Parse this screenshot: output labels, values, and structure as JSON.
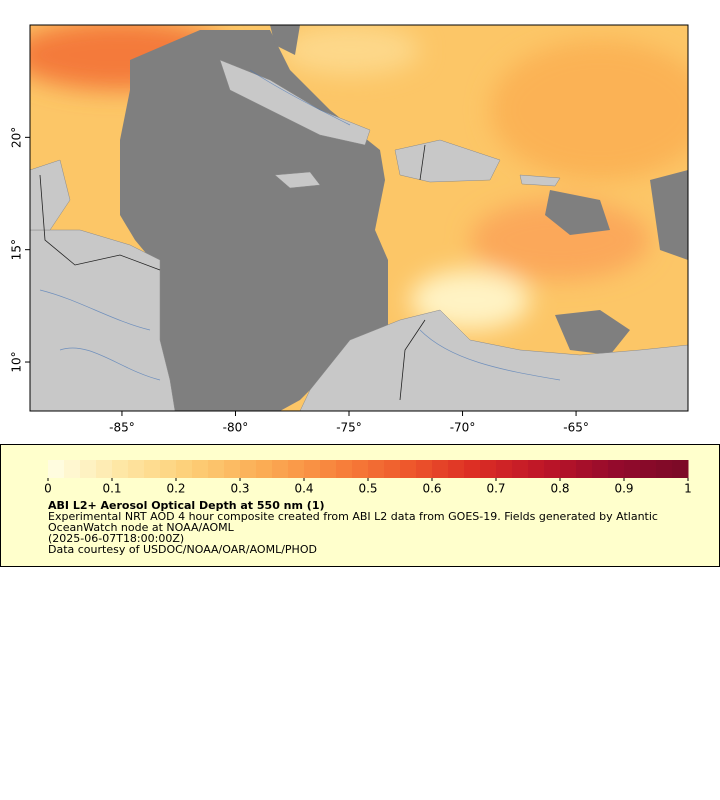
{
  "map": {
    "type": "map",
    "xlim": [
      -89.05,
      -60.07
    ],
    "ylim": [
      7.82,
      25
    ],
    "xticks": [
      {
        "value": -85,
        "label": "-85°"
      },
      {
        "value": -80,
        "label": "-80°"
      },
      {
        "value": -75,
        "label": "-75°"
      },
      {
        "value": -70,
        "label": "-70°"
      },
      {
        "value": -65,
        "label": "-65°"
      }
    ],
    "yticks": [
      {
        "value": 10,
        "label": "10°"
      },
      {
        "value": 15,
        "label": "15°"
      },
      {
        "value": 20,
        "label": "20°"
      }
    ]
  },
  "legend": {
    "title": "ABI L2+ Aerosol Optical Depth at 550 nm (1)",
    "description": "Experimental NRT AOD 4 hour composite created from ABI L2 data from GOES-19. Fields generated by Atlantic OceanWatch node at NOAA/AOML",
    "timestamp": "(2025-06-07T18:00:00Z)",
    "credit": "Data courtesy of USDOC/NOAA/OAR/AOML/PHOD",
    "colorbar": {
      "lim": [
        0,
        1
      ],
      "ticks": [
        0,
        0.1,
        0.2,
        0.3,
        0.4,
        0.5,
        0.6,
        0.7,
        0.8,
        0.9,
        1
      ],
      "colors": [
        "#ffffe6",
        "#fee7a6",
        "#fdcf77",
        "#fbad55",
        "#f8853d",
        "#ef5b2c",
        "#dc2d24",
        "#bd1528",
        "#930a2c",
        "#7a0a26"
      ]
    }
  }
}
